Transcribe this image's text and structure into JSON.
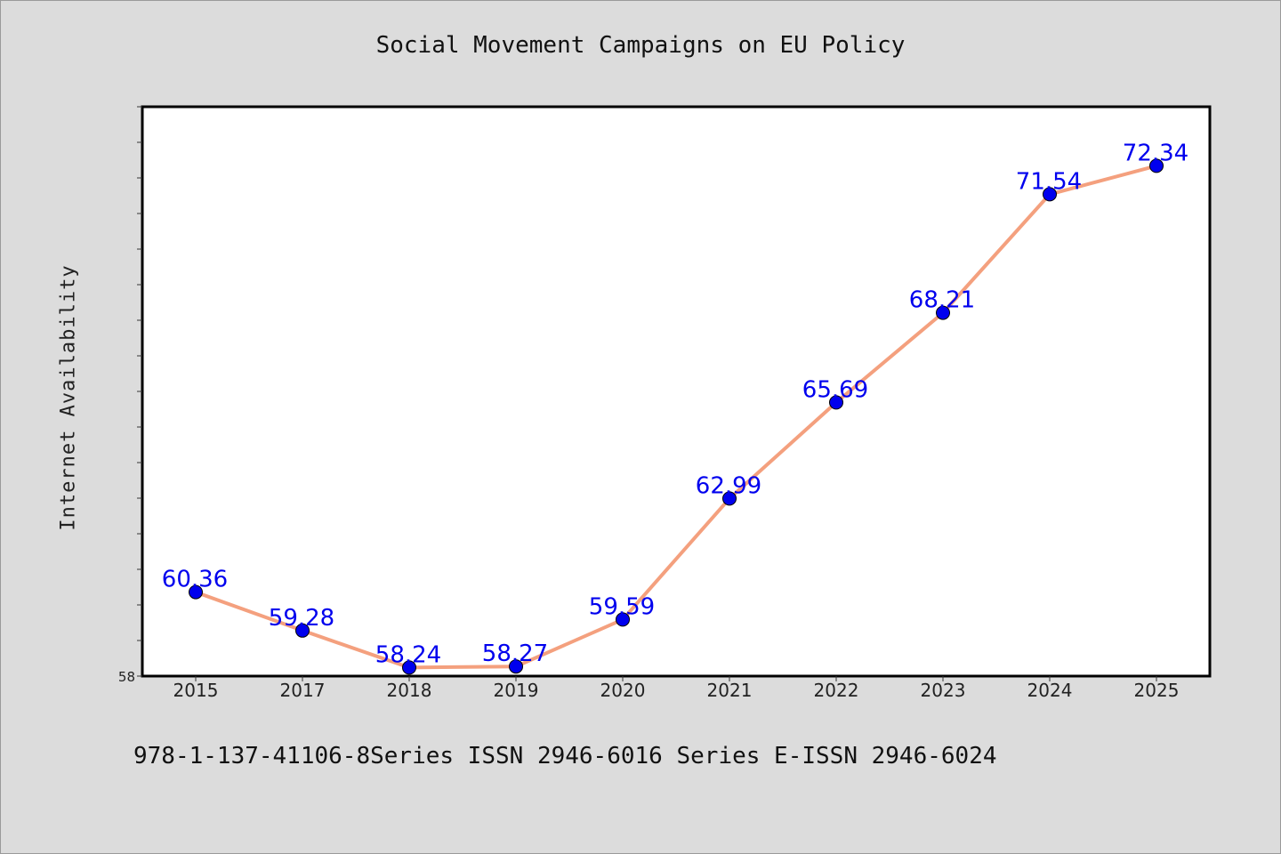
{
  "title": "Social Movement Campaigns on EU Policy",
  "footer": "978-1-137-41106-8Series ISSN 2946-6016 Series E-ISSN 2946-6024",
  "colors": {
    "background": "#dcdcdc",
    "plot_background": "#ffffff",
    "line": "#f4a07e",
    "marker": "#0000ee",
    "label": "#0000ee"
  },
  "chart_data": {
    "type": "line",
    "title": "Social Movement Campaigns on EU Policy",
    "xlabel": "",
    "ylabel": "Internet Availability",
    "categories": [
      "2015",
      "2017",
      "2018",
      "2019",
      "2020",
      "2021",
      "2022",
      "2023",
      "2024",
      "2025"
    ],
    "series": [
      {
        "values": [
          60.36,
          59.28,
          58.24,
          58.27,
          59.59,
          62.99,
          65.69,
          68.21,
          71.54,
          72.34
        ]
      }
    ],
    "yticks": [
      "58"
    ],
    "ylim": [
      58,
      74
    ],
    "grid": false,
    "legend": "none"
  }
}
